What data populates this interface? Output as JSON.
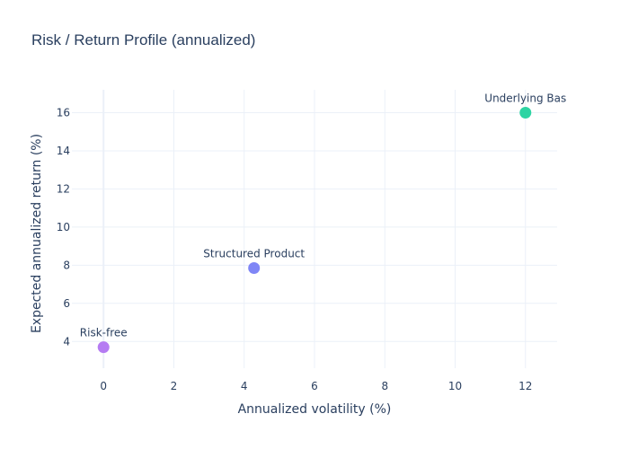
{
  "chart_data": {
    "type": "scatter",
    "title": "Risk / Return Profile (annualized)",
    "xlabel": "Annualized volatility (%)",
    "ylabel": "Expected annualized return (%)",
    "xlim": [
      -0.9,
      12.9
    ],
    "ylim": [
      2.6,
      17.2
    ],
    "xticks": [
      0,
      2,
      4,
      6,
      8,
      10,
      12
    ],
    "yticks": [
      4,
      6,
      8,
      10,
      12,
      14,
      16
    ],
    "grid": true,
    "legend": "none",
    "points": [
      {
        "label": "Risk-free",
        "x": 0.0,
        "y": 3.7,
        "color": "#b57bf2"
      },
      {
        "label": "Structured Product",
        "x": 4.28,
        "y": 7.85,
        "color": "#7f86f6"
      },
      {
        "label": "Underlying Bas",
        "x": 12.0,
        "y": 16.0,
        "color": "#2dd4a3"
      }
    ]
  }
}
